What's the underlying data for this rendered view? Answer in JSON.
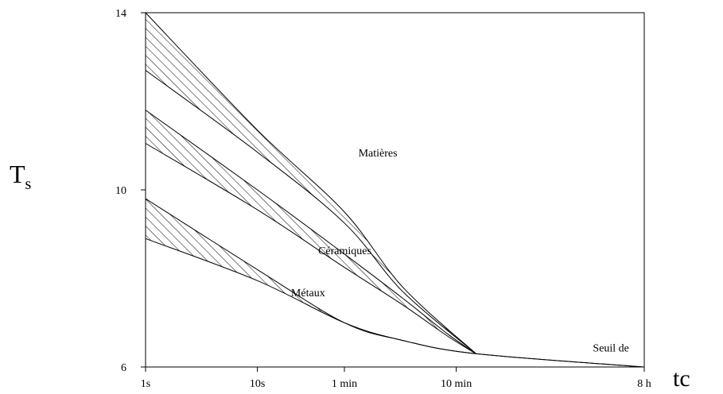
{
  "chart_data": {
    "type": "area",
    "title": "",
    "xlabel": "tc",
    "ylabel": {
      "main": "T",
      "sub": "s"
    },
    "x_scale": "log",
    "x_unit": "seconds",
    "xlim": [
      1,
      28800
    ],
    "ylim": [
      6,
      14
    ],
    "grid": false,
    "x_ticks": [
      {
        "value": 1,
        "label": "1s"
      },
      {
        "value": 10,
        "label": "10s"
      },
      {
        "value": 60,
        "label": "1 min"
      },
      {
        "value": 600,
        "label": "10 min"
      },
      {
        "value": 28800,
        "label": "8 h"
      }
    ],
    "y_ticks": [
      {
        "value": 6,
        "label": "6"
      },
      {
        "value": 10,
        "label": "10"
      },
      {
        "value": 14,
        "label": "14"
      }
    ],
    "series": [
      {
        "name": "Matières",
        "upper": {
          "x": [
            1,
            10,
            60,
            200,
            900
          ],
          "y": [
            14,
            11.35,
            9.5,
            7.8,
            6.3
          ]
        },
        "lower": {
          "x": [
            1,
            10,
            60,
            200,
            900
          ],
          "y": [
            12.7,
            10.85,
            9.25,
            7.7,
            6.3
          ]
        },
        "label": {
          "text": "Matières",
          "x": 80,
          "y": 10.75
        }
      },
      {
        "name": "Céramiques",
        "upper": {
          "x": [
            1,
            10,
            60,
            200,
            500,
            900
          ],
          "y": [
            11.8,
            10.0,
            8.55,
            7.55,
            6.75,
            6.3
          ]
        },
        "lower": {
          "x": [
            1,
            10,
            60,
            200,
            500,
            900
          ],
          "y": [
            11.05,
            9.55,
            8.25,
            7.4,
            6.7,
            6.3
          ]
        },
        "label": {
          "text": "Céramiques",
          "x": 35,
          "y": 8.55
        }
      },
      {
        "name": "Métaux",
        "upper": {
          "x": [
            1,
            10,
            60,
            200,
            900,
            28800
          ],
          "y": [
            9.8,
            8.2,
            7.0,
            6.6,
            6.3,
            6.0
          ]
        },
        "lower": {
          "x": [
            1,
            10,
            60,
            200,
            900,
            28800
          ],
          "y": [
            8.9,
            7.95,
            7.0,
            6.6,
            6.3,
            6.0
          ]
        },
        "label": {
          "text": "Métaux",
          "x": 20,
          "y": 7.6
        }
      }
    ],
    "annotations": [
      {
        "text": "Seuil de",
        "x": 10000,
        "y": 6.35
      }
    ]
  }
}
